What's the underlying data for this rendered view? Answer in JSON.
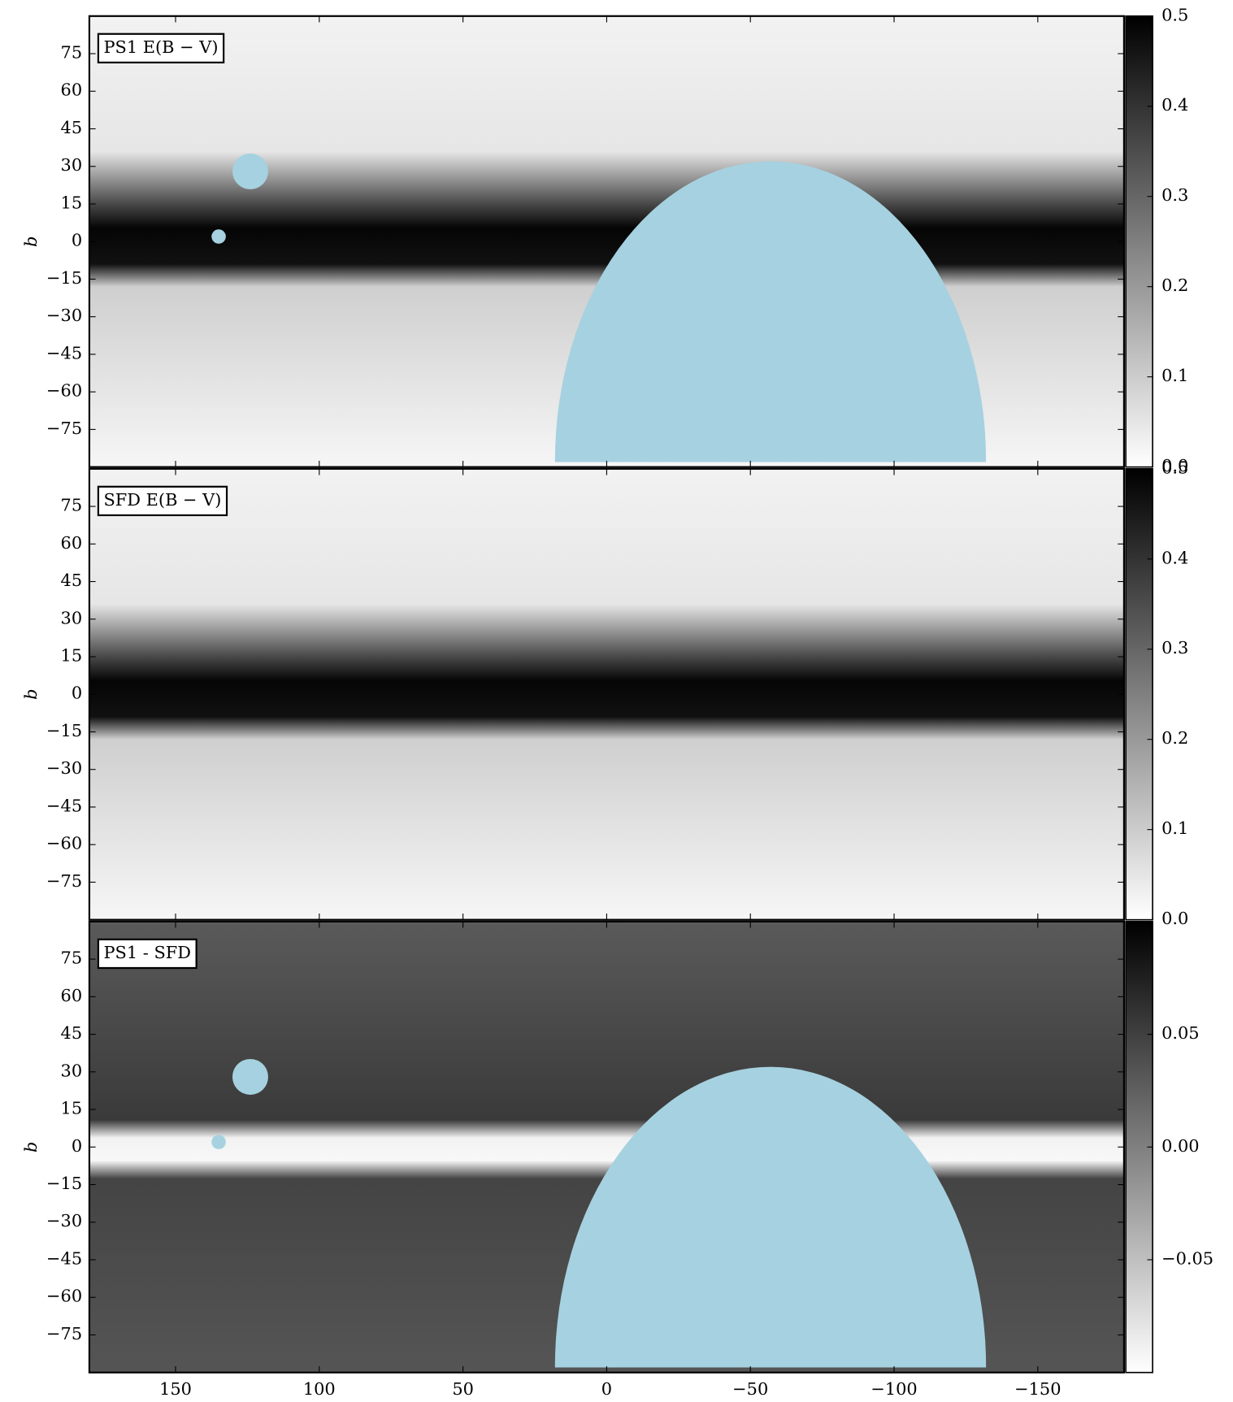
{
  "chart_data": [
    {
      "type": "heatmap",
      "label": "PS1 E(B − V)",
      "ylabel": "b",
      "xlim": [
        180,
        -180
      ],
      "ylim": [
        -90,
        90
      ],
      "yticks": [
        {
          "value": -75,
          "label": "−75"
        },
        {
          "value": -60,
          "label": "−60"
        },
        {
          "value": -45,
          "label": "−45"
        },
        {
          "value": -30,
          "label": "−30"
        },
        {
          "value": -15,
          "label": "−15"
        },
        0,
        15,
        30,
        45,
        60,
        75
      ],
      "clim": [
        0,
        0.5
      ],
      "cticks": [
        {
          "value": 0,
          "label": "0.0"
        },
        0.1,
        0.2,
        0.3,
        0.4,
        0.5
      ],
      "cmap": [
        "#ffffff",
        "#000000"
      ],
      "mask": true,
      "mask_color": "#a6d1e0"
    },
    {
      "type": "heatmap",
      "label": "SFD E(B − V)",
      "ylabel": "b",
      "xlim": [
        180,
        -180
      ],
      "ylim": [
        -90,
        90
      ],
      "yticks": [
        {
          "value": -75,
          "label": "−75"
        },
        {
          "value": -60,
          "label": "−60"
        },
        {
          "value": -45,
          "label": "−45"
        },
        {
          "value": -30,
          "label": "−30"
        },
        {
          "value": -15,
          "label": "−15"
        },
        0,
        15,
        30,
        45,
        60,
        75
      ],
      "clim": [
        0,
        0.5
      ],
      "cticks": [
        {
          "value": 0,
          "label": "0.0"
        },
        0.1,
        0.2,
        0.3,
        0.4,
        0.5
      ],
      "cmap": [
        "#ffffff",
        "#000000"
      ],
      "mask": false,
      "mask_color": "#a6d1e0"
    },
    {
      "type": "heatmap",
      "label": "PS1 - SFD",
      "ylabel": "b",
      "xlim": [
        180,
        -180
      ],
      "ylim": [
        -90,
        90
      ],
      "xticks": [
        150,
        100,
        50,
        0,
        {
          "value": -50,
          "label": "−50"
        },
        {
          "value": -100,
          "label": "−100"
        },
        {
          "value": -150,
          "label": "−150"
        }
      ],
      "yticks": [
        {
          "value": -75,
          "label": "−75"
        },
        {
          "value": -60,
          "label": "−60"
        },
        {
          "value": -45,
          "label": "−45"
        },
        {
          "value": -30,
          "label": "−30"
        },
        {
          "value": -15,
          "label": "−15"
        },
        0,
        15,
        30,
        45,
        60,
        75
      ],
      "clim": [
        -0.1,
        0.1
      ],
      "cticks": [
        {
          "value": -0.05,
          "label": "−0.05"
        },
        {
          "value": 0,
          "label": "0.00"
        },
        0.05
      ],
      "cmap": [
        "#ffffff",
        "#000000"
      ],
      "mask": true,
      "mask_color": "#a6d1e0"
    }
  ]
}
